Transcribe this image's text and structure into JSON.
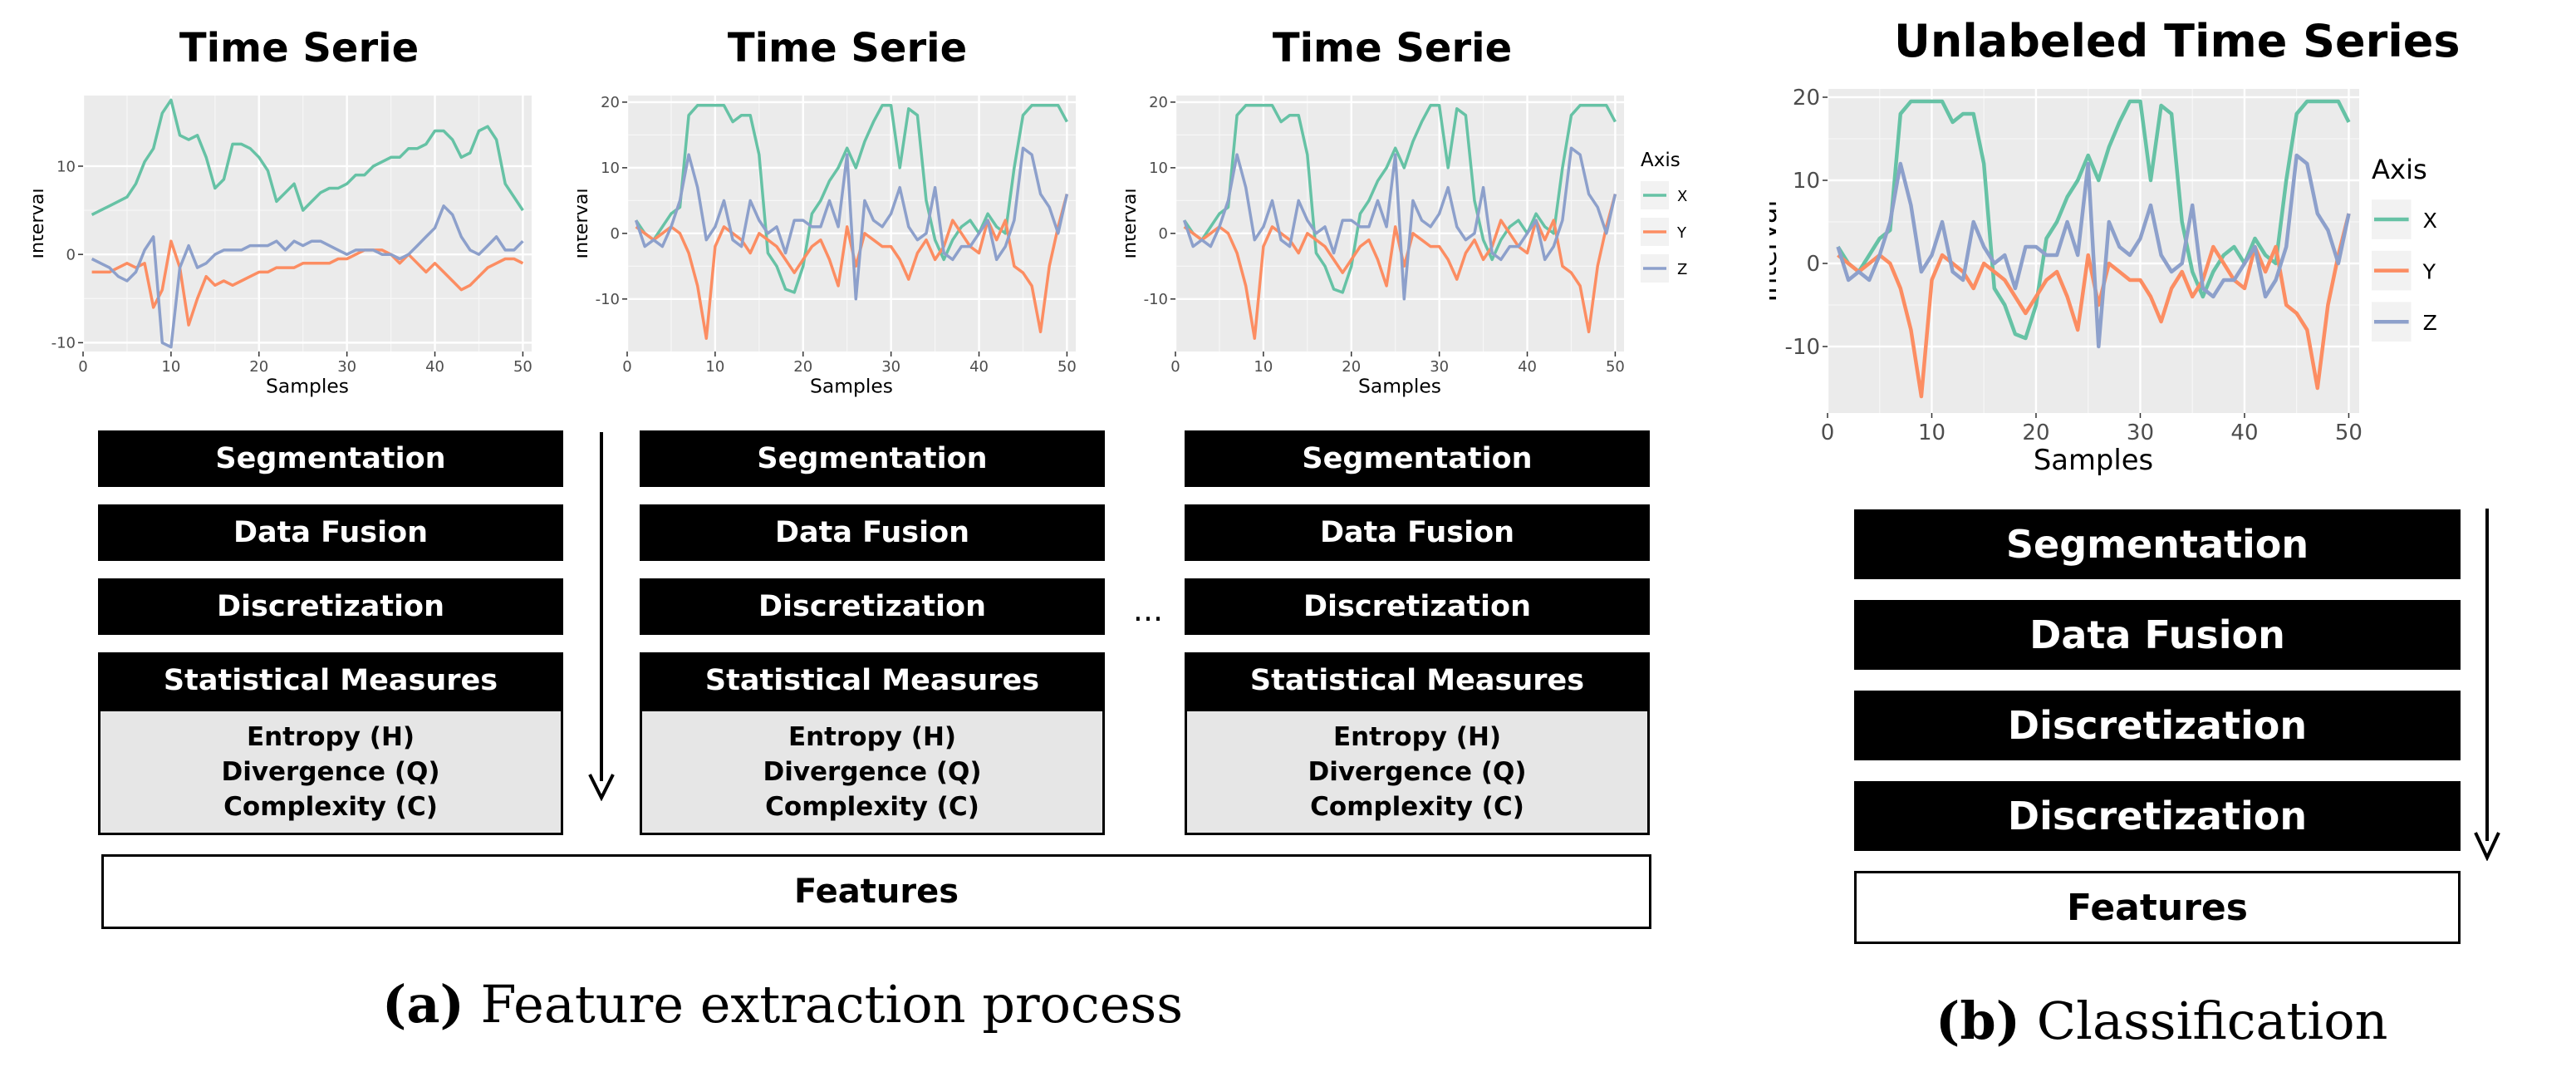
{
  "panel_a": {
    "columns": [
      {
        "title": "Time Serie",
        "steps": [
          "Segmentation",
          "Data Fusion",
          "Discretization",
          "Statistical Measures"
        ],
        "measures": [
          "Entropy (H)",
          "Divergence (Q)",
          "Complexity (C)"
        ]
      },
      {
        "title": "Time Serie",
        "steps": [
          "Segmentation",
          "Data Fusion",
          "Discretization",
          "Statistical Measures"
        ],
        "measures": [
          "Entropy (H)",
          "Divergence (Q)",
          "Complexity (C)"
        ]
      },
      {
        "title": "Time Serie",
        "steps": [
          "Segmentation",
          "Data Fusion",
          "Discretization",
          "Statistical Measures"
        ],
        "measures": [
          "Entropy (H)",
          "Divergence (Q)",
          "Complexity (C)"
        ]
      }
    ],
    "ellipsis": "...",
    "features_label": "Features",
    "caption_label": "(a)",
    "caption_text": " Feature extraction process"
  },
  "panel_b": {
    "title": "Unlabeled Time Series",
    "steps": [
      "Segmentation",
      "Data Fusion",
      "Discretization",
      "Discretization"
    ],
    "features_label": "Features",
    "caption_label": "(b)",
    "caption_text": " Classification"
  },
  "chart_data": [
    {
      "type": "line",
      "title": "Time Serie",
      "xlabel": "Samples",
      "ylabel": "Interval",
      "xlim": [
        0,
        51
      ],
      "ylim": [
        -11,
        18
      ],
      "xticks": [
        0,
        10,
        20,
        30,
        40,
        50
      ],
      "yticks": [
        -10,
        0,
        10
      ],
      "x": [
        1,
        2,
        3,
        4,
        5,
        6,
        7,
        8,
        9,
        10,
        11,
        12,
        13,
        14,
        15,
        16,
        17,
        18,
        19,
        20,
        21,
        22,
        23,
        24,
        25,
        26,
        27,
        28,
        29,
        30,
        31,
        32,
        33,
        34,
        35,
        36,
        37,
        38,
        39,
        40,
        41,
        42,
        43,
        44,
        45,
        46,
        47,
        48,
        49,
        50
      ],
      "series": [
        {
          "name": "X",
          "color": "#66c2a5",
          "values": [
            4.5,
            5,
            5.5,
            6,
            6.5,
            8,
            10.5,
            12,
            16,
            17.5,
            13.5,
            13,
            13.5,
            11,
            7.5,
            8.5,
            12.5,
            12.5,
            12,
            11,
            9.5,
            6,
            7,
            8,
            5,
            6,
            7,
            7.5,
            7.5,
            8,
            9,
            9,
            10,
            10.5,
            11,
            11,
            12,
            12,
            12.5,
            14,
            14,
            13,
            11,
            11.5,
            14,
            14.5,
            13,
            8,
            6.5,
            5
          ]
        },
        {
          "name": "Y",
          "color": "#fc8d62",
          "values": [
            -2,
            -2,
            -2,
            -1.5,
            -1,
            -1.5,
            -1,
            -6,
            -4,
            1.5,
            -1.5,
            -8,
            -5,
            -2.5,
            -3.5,
            -3,
            -3.5,
            -3,
            -2.5,
            -2,
            -2,
            -1.5,
            -1.5,
            -1.5,
            -1,
            -1,
            -1,
            -1,
            -0.5,
            -0.5,
            0,
            0.5,
            0.5,
            0.5,
            0,
            -1,
            0,
            -1,
            -2,
            -1,
            -2,
            -3,
            -4,
            -3.5,
            -2.5,
            -1.5,
            -1,
            -0.5,
            -0.5,
            -1
          ]
        },
        {
          "name": "Z",
          "color": "#8da0cb",
          "values": [
            -0.5,
            -1,
            -1.5,
            -2.5,
            -3,
            -2,
            0.5,
            2,
            -10,
            -10.5,
            -1.5,
            1,
            -1.5,
            -1,
            0,
            0.5,
            0.5,
            0.5,
            1,
            1,
            1,
            1.5,
            0.5,
            1.5,
            1,
            1.5,
            1.5,
            1,
            0.5,
            0,
            0.5,
            0.5,
            0.5,
            0,
            0,
            -0.5,
            0,
            1,
            2,
            3,
            5.5,
            4.5,
            2,
            0.5,
            0,
            1,
            2,
            0.5,
            0.5,
            1.5
          ]
        }
      ]
    },
    {
      "type": "line",
      "title": "Time Serie",
      "xlabel": "Samples",
      "ylabel": "Interval",
      "xlim": [
        0,
        51
      ],
      "ylim": [
        -18,
        21
      ],
      "xticks": [
        0,
        10,
        20,
        30,
        40,
        50
      ],
      "yticks": [
        -10,
        0,
        10,
        20
      ],
      "x": [
        1,
        2,
        3,
        4,
        5,
        6,
        7,
        8,
        9,
        10,
        11,
        12,
        13,
        14,
        15,
        16,
        17,
        18,
        19,
        20,
        21,
        22,
        23,
        24,
        25,
        26,
        27,
        28,
        29,
        30,
        31,
        32,
        33,
        34,
        35,
        36,
        37,
        38,
        39,
        40,
        41,
        42,
        43,
        44,
        45,
        46,
        47,
        48,
        49,
        50
      ],
      "series": [
        {
          "name": "X",
          "color": "#66c2a5",
          "values": [
            2,
            0,
            -1,
            1,
            3,
            4,
            18,
            19.5,
            19.5,
            19.5,
            19.5,
            17,
            18,
            18,
            12,
            -3,
            -5,
            -8.5,
            -9,
            -5,
            3,
            5,
            8,
            10,
            13,
            10,
            14,
            17,
            19.5,
            19.5,
            10,
            19,
            18,
            5,
            -1,
            -4,
            -1,
            1,
            2,
            0,
            3,
            1,
            0,
            10,
            18,
            19.5,
            19.5,
            19.5,
            19.5,
            17
          ]
        },
        {
          "name": "Y",
          "color": "#fc8d62",
          "values": [
            1,
            0,
            -1,
            0,
            1,
            0,
            -3,
            -8,
            -16,
            -2,
            1,
            0,
            -1,
            -3,
            0,
            -1,
            -2,
            -4,
            -6,
            -4,
            -2,
            -1,
            -4,
            -8,
            1,
            -5,
            0,
            -1,
            -2,
            -2,
            -4,
            -7,
            -3,
            -1,
            -4,
            -2,
            2,
            0,
            -2,
            -3,
            2,
            -1,
            2,
            -5,
            -6,
            -8,
            -15,
            -5,
            1,
            6
          ]
        },
        {
          "name": "Z",
          "color": "#8da0cb",
          "values": [
            2,
            -2,
            -1,
            -2,
            1,
            5,
            12,
            7,
            -1,
            1,
            5,
            -1,
            -2,
            5,
            2,
            0,
            1,
            -3,
            2,
            2,
            1,
            1,
            5,
            1,
            12,
            -10,
            5,
            2,
            1,
            3,
            7,
            1,
            -1,
            0,
            7,
            -3,
            -4,
            -2,
            -2,
            0,
            2,
            -4,
            -2,
            2,
            13,
            12,
            6,
            4,
            0,
            6
          ]
        }
      ]
    },
    {
      "type": "line",
      "title": "Time Serie",
      "xlabel": "Samples",
      "ylabel": "Interval",
      "legend_title": "Axis",
      "legend": [
        "X",
        "Y",
        "Z"
      ],
      "xlim": [
        0,
        51
      ],
      "ylim": [
        -18,
        21
      ],
      "xticks": [
        0,
        10,
        20,
        30,
        40,
        50
      ],
      "yticks": [
        -10,
        0,
        10,
        20
      ],
      "x": [
        1,
        2,
        3,
        4,
        5,
        6,
        7,
        8,
        9,
        10,
        11,
        12,
        13,
        14,
        15,
        16,
        17,
        18,
        19,
        20,
        21,
        22,
        23,
        24,
        25,
        26,
        27,
        28,
        29,
        30,
        31,
        32,
        33,
        34,
        35,
        36,
        37,
        38,
        39,
        40,
        41,
        42,
        43,
        44,
        45,
        46,
        47,
        48,
        49,
        50
      ],
      "series": [
        {
          "name": "X",
          "color": "#66c2a5",
          "values": [
            2,
            0,
            -1,
            1,
            3,
            4,
            18,
            19.5,
            19.5,
            19.5,
            19.5,
            17,
            18,
            18,
            12,
            -3,
            -5,
            -8.5,
            -9,
            -5,
            3,
            5,
            8,
            10,
            13,
            10,
            14,
            17,
            19.5,
            19.5,
            10,
            19,
            18,
            5,
            -1,
            -4,
            -1,
            1,
            2,
            0,
            3,
            1,
            0,
            10,
            18,
            19.5,
            19.5,
            19.5,
            19.5,
            17
          ]
        },
        {
          "name": "Y",
          "color": "#fc8d62",
          "values": [
            1,
            0,
            -1,
            0,
            1,
            0,
            -3,
            -8,
            -16,
            -2,
            1,
            0,
            -1,
            -3,
            0,
            -1,
            -2,
            -4,
            -6,
            -4,
            -2,
            -1,
            -4,
            -8,
            1,
            -5,
            0,
            -1,
            -2,
            -2,
            -4,
            -7,
            -3,
            -1,
            -4,
            -2,
            2,
            0,
            -2,
            -3,
            2,
            -1,
            2,
            -5,
            -6,
            -8,
            -15,
            -5,
            1,
            6
          ]
        },
        {
          "name": "Z",
          "color": "#8da0cb",
          "values": [
            2,
            -2,
            -1,
            -2,
            1,
            5,
            12,
            7,
            -1,
            1,
            5,
            -1,
            -2,
            5,
            2,
            0,
            1,
            -3,
            2,
            2,
            1,
            1,
            5,
            1,
            12,
            -10,
            5,
            2,
            1,
            3,
            7,
            1,
            -1,
            0,
            7,
            -3,
            -4,
            -2,
            -2,
            0,
            2,
            -4,
            -2,
            2,
            13,
            12,
            6,
            4,
            0,
            6
          ]
        }
      ]
    },
    {
      "type": "line",
      "title": "Unlabeled Time Series",
      "xlabel": "Samples",
      "ylabel": "Interval",
      "legend_title": "Axis",
      "legend": [
        "X",
        "Y",
        "Z"
      ],
      "xlim": [
        0,
        51
      ],
      "ylim": [
        -18,
        21
      ],
      "xticks": [
        0,
        10,
        20,
        30,
        40,
        50
      ],
      "yticks": [
        -10,
        0,
        10,
        20
      ],
      "x": [
        1,
        2,
        3,
        4,
        5,
        6,
        7,
        8,
        9,
        10,
        11,
        12,
        13,
        14,
        15,
        16,
        17,
        18,
        19,
        20,
        21,
        22,
        23,
        24,
        25,
        26,
        27,
        28,
        29,
        30,
        31,
        32,
        33,
        34,
        35,
        36,
        37,
        38,
        39,
        40,
        41,
        42,
        43,
        44,
        45,
        46,
        47,
        48,
        49,
        50
      ],
      "series": [
        {
          "name": "X",
          "color": "#66c2a5",
          "values": [
            2,
            0,
            -1,
            1,
            3,
            4,
            18,
            19.5,
            19.5,
            19.5,
            19.5,
            17,
            18,
            18,
            12,
            -3,
            -5,
            -8.5,
            -9,
            -5,
            3,
            5,
            8,
            10,
            13,
            10,
            14,
            17,
            19.5,
            19.5,
            10,
            19,
            18,
            5,
            -1,
            -4,
            -1,
            1,
            2,
            0,
            3,
            1,
            0,
            10,
            18,
            19.5,
            19.5,
            19.5,
            19.5,
            17
          ]
        },
        {
          "name": "Y",
          "color": "#fc8d62",
          "values": [
            1,
            0,
            -1,
            0,
            1,
            0,
            -3,
            -8,
            -16,
            -2,
            1,
            0,
            -1,
            -3,
            0,
            -1,
            -2,
            -4,
            -6,
            -4,
            -2,
            -1,
            -4,
            -8,
            1,
            -5,
            0,
            -1,
            -2,
            -2,
            -4,
            -7,
            -3,
            -1,
            -4,
            -2,
            2,
            0,
            -2,
            -3,
            2,
            -1,
            2,
            -5,
            -6,
            -8,
            -15,
            -5,
            1,
            6
          ]
        },
        {
          "name": "Z",
          "color": "#8da0cb",
          "values": [
            2,
            -2,
            -1,
            -2,
            1,
            5,
            12,
            7,
            -1,
            1,
            5,
            -1,
            -2,
            5,
            2,
            0,
            1,
            -3,
            2,
            2,
            1,
            1,
            5,
            1,
            12,
            -10,
            5,
            2,
            1,
            3,
            7,
            1,
            -1,
            0,
            7,
            -3,
            -4,
            -2,
            -2,
            0,
            2,
            -4,
            -2,
            2,
            13,
            12,
            6,
            4,
            0,
            6
          ]
        }
      ]
    }
  ]
}
